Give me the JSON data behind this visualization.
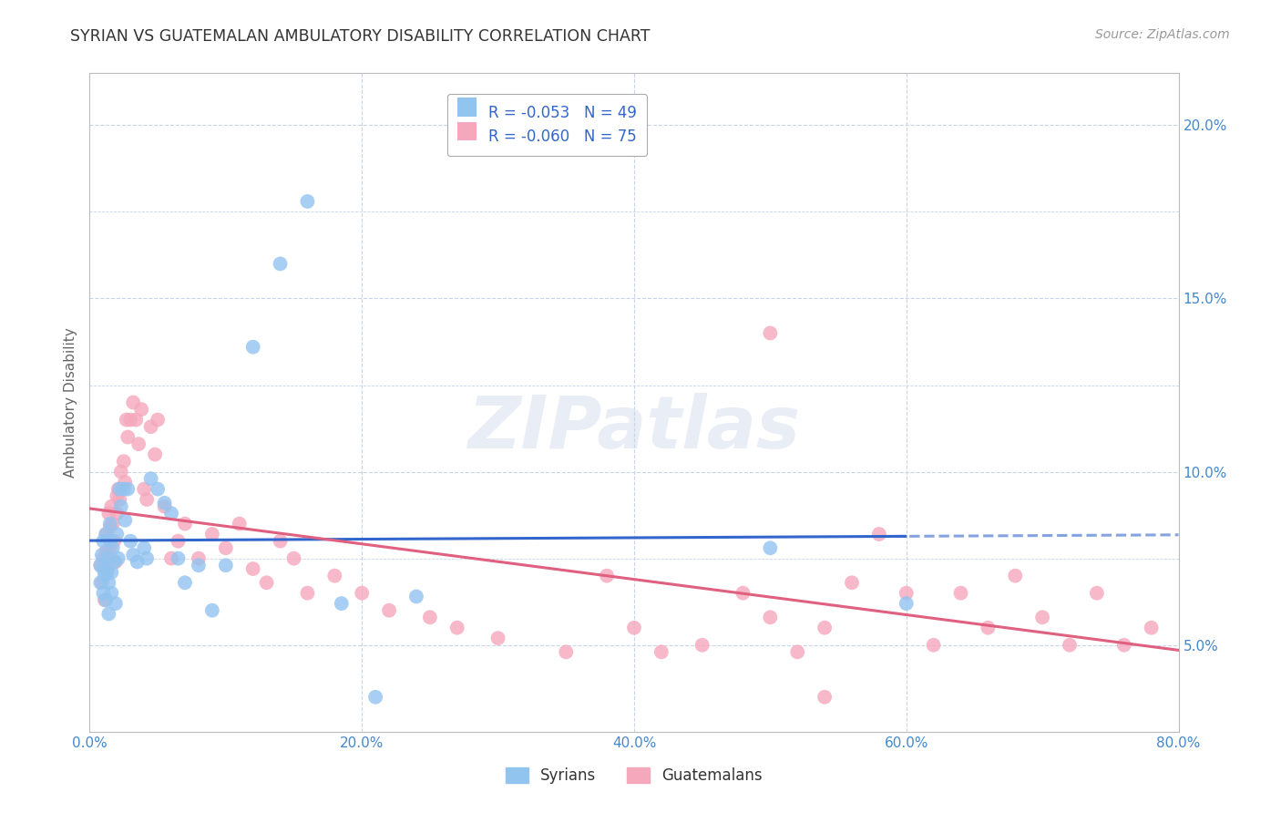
{
  "title": "SYRIAN VS GUATEMALAN AMBULATORY DISABILITY CORRELATION CHART",
  "source": "Source: ZipAtlas.com",
  "ylabel_label": "Ambulatory Disability",
  "xlim": [
    0.0,
    0.8
  ],
  "ylim": [
    0.025,
    0.215
  ],
  "xticks": [
    0.0,
    0.2,
    0.4,
    0.6,
    0.8
  ],
  "xtick_labels": [
    "0.0%",
    "20.0%",
    "40.0%",
    "60.0%",
    "80.0%"
  ],
  "yticks": [
    0.05,
    0.1,
    0.15,
    0.2
  ],
  "ytick_labels": [
    "5.0%",
    "10.0%",
    "15.0%",
    "20.0%"
  ],
  "background_color": "#ffffff",
  "grid_color": "#c8d4e8",
  "watermark_text": "ZIPatlas",
  "legend_r_syrian": "-0.053",
  "legend_n_syrian": "49",
  "legend_r_guatemalan": "-0.060",
  "legend_n_guatemalan": "75",
  "syrian_color": "#92c4f0",
  "guatemalan_color": "#f5a8bc",
  "syrian_line_color": "#3366cc",
  "guatemalan_line_color": "#e06080",
  "title_color": "#333333",
  "axis_label_color": "#666666",
  "tick_color": "#4488cc",
  "source_color": "#999999",
  "legend_text_color": "#3366cc",
  "syrian_x": [
    0.008,
    0.008,
    0.009,
    0.01,
    0.01,
    0.01,
    0.011,
    0.012,
    0.012,
    0.013,
    0.013,
    0.014,
    0.014,
    0.015,
    0.015,
    0.016,
    0.016,
    0.017,
    0.018,
    0.019,
    0.02,
    0.021,
    0.022,
    0.023,
    0.025,
    0.026,
    0.028,
    0.03,
    0.032,
    0.035,
    0.04,
    0.042,
    0.045,
    0.05,
    0.055,
    0.06,
    0.065,
    0.07,
    0.08,
    0.09,
    0.1,
    0.12,
    0.14,
    0.16,
    0.185,
    0.21,
    0.24,
    0.5,
    0.6
  ],
  "syrian_y": [
    0.073,
    0.068,
    0.076,
    0.08,
    0.065,
    0.072,
    0.07,
    0.063,
    0.082,
    0.075,
    0.071,
    0.068,
    0.059,
    0.085,
    0.08,
    0.071,
    0.065,
    0.078,
    0.074,
    0.062,
    0.082,
    0.075,
    0.095,
    0.09,
    0.095,
    0.086,
    0.095,
    0.08,
    0.076,
    0.074,
    0.078,
    0.075,
    0.098,
    0.095,
    0.091,
    0.088,
    0.075,
    0.068,
    0.073,
    0.06,
    0.073,
    0.136,
    0.16,
    0.178,
    0.062,
    0.035,
    0.064,
    0.078,
    0.062
  ],
  "guatemalan_x": [
    0.008,
    0.009,
    0.01,
    0.011,
    0.012,
    0.012,
    0.013,
    0.014,
    0.015,
    0.015,
    0.016,
    0.017,
    0.018,
    0.019,
    0.02,
    0.02,
    0.021,
    0.022,
    0.023,
    0.025,
    0.026,
    0.027,
    0.028,
    0.03,
    0.032,
    0.034,
    0.036,
    0.038,
    0.04,
    0.042,
    0.045,
    0.048,
    0.05,
    0.055,
    0.06,
    0.065,
    0.07,
    0.08,
    0.09,
    0.1,
    0.11,
    0.12,
    0.13,
    0.14,
    0.15,
    0.16,
    0.18,
    0.2,
    0.22,
    0.25,
    0.27,
    0.3,
    0.35,
    0.38,
    0.4,
    0.42,
    0.45,
    0.48,
    0.5,
    0.52,
    0.54,
    0.56,
    0.58,
    0.6,
    0.62,
    0.64,
    0.66,
    0.68,
    0.7,
    0.72,
    0.74,
    0.76,
    0.78,
    0.5,
    0.54
  ],
  "guatemalan_y": [
    0.073,
    0.068,
    0.075,
    0.063,
    0.082,
    0.077,
    0.072,
    0.088,
    0.084,
    0.078,
    0.09,
    0.085,
    0.08,
    0.074,
    0.093,
    0.088,
    0.095,
    0.092,
    0.1,
    0.103,
    0.097,
    0.115,
    0.11,
    0.115,
    0.12,
    0.115,
    0.108,
    0.118,
    0.095,
    0.092,
    0.113,
    0.105,
    0.115,
    0.09,
    0.075,
    0.08,
    0.085,
    0.075,
    0.082,
    0.078,
    0.085,
    0.072,
    0.068,
    0.08,
    0.075,
    0.065,
    0.07,
    0.065,
    0.06,
    0.058,
    0.055,
    0.052,
    0.048,
    0.07,
    0.055,
    0.048,
    0.05,
    0.065,
    0.058,
    0.048,
    0.055,
    0.068,
    0.082,
    0.065,
    0.05,
    0.065,
    0.055,
    0.07,
    0.058,
    0.05,
    0.065,
    0.05,
    0.055,
    0.14,
    0.035
  ]
}
